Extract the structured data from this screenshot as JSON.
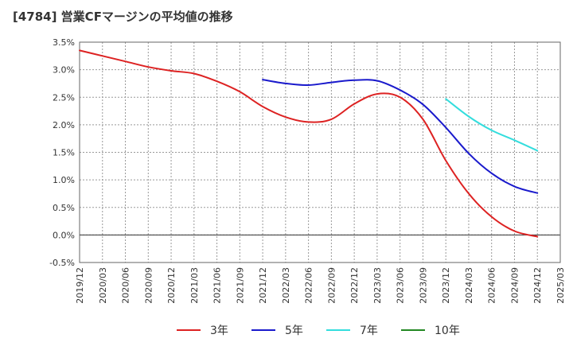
{
  "chart_data": {
    "type": "line",
    "title": "[4784]  営業CFマージンの平均値の推移",
    "xlabel": "",
    "ylabel": "",
    "x_ticks": [
      "2019/12",
      "2020/03",
      "2020/06",
      "2020/09",
      "2020/12",
      "2021/03",
      "2021/06",
      "2021/09",
      "2021/12",
      "2022/03",
      "2022/06",
      "2022/09",
      "2022/12",
      "2023/03",
      "2023/06",
      "2023/09",
      "2023/12",
      "2024/03",
      "2024/06",
      "2024/09",
      "2024/12",
      "2025/03"
    ],
    "y_ticks": [
      "-0.5%",
      "0.0%",
      "0.5%",
      "1.0%",
      "1.5%",
      "2.0%",
      "2.5%",
      "3.0%",
      "3.5%"
    ],
    "ylim": [
      -0.5,
      3.5
    ],
    "grid": true,
    "legend_position": "bottom",
    "series": [
      {
        "name": "3年",
        "color": "#dd2222",
        "points": [
          [
            "2019/12",
            3.35
          ],
          [
            "2020/03",
            3.25
          ],
          [
            "2020/06",
            3.15
          ],
          [
            "2020/09",
            3.05
          ],
          [
            "2020/12",
            2.98
          ],
          [
            "2021/03",
            2.93
          ],
          [
            "2021/06",
            2.79
          ],
          [
            "2021/09",
            2.6
          ],
          [
            "2021/12",
            2.33
          ],
          [
            "2022/03",
            2.14
          ],
          [
            "2022/06",
            2.05
          ],
          [
            "2022/09",
            2.1
          ],
          [
            "2022/12",
            2.38
          ],
          [
            "2023/03",
            2.56
          ],
          [
            "2023/06",
            2.5
          ],
          [
            "2023/09",
            2.1
          ],
          [
            "2023/12",
            1.35
          ],
          [
            "2024/03",
            0.75
          ],
          [
            "2024/06",
            0.33
          ],
          [
            "2024/09",
            0.07
          ],
          [
            "2024/12",
            -0.03
          ]
        ]
      },
      {
        "name": "5年",
        "color": "#1a1acc",
        "points": [
          [
            "2021/12",
            2.82
          ],
          [
            "2022/03",
            2.75
          ],
          [
            "2022/06",
            2.72
          ],
          [
            "2022/09",
            2.77
          ],
          [
            "2022/12",
            2.81
          ],
          [
            "2023/03",
            2.8
          ],
          [
            "2023/06",
            2.63
          ],
          [
            "2023/09",
            2.37
          ],
          [
            "2023/12",
            1.95
          ],
          [
            "2024/03",
            1.48
          ],
          [
            "2024/06",
            1.12
          ],
          [
            "2024/09",
            0.88
          ],
          [
            "2024/12",
            0.76
          ]
        ]
      },
      {
        "name": "7年",
        "color": "#33dddd",
        "points": [
          [
            "2023/12",
            2.47
          ],
          [
            "2024/03",
            2.15
          ],
          [
            "2024/06",
            1.9
          ],
          [
            "2024/09",
            1.72
          ],
          [
            "2024/12",
            1.53
          ]
        ]
      },
      {
        "name": "10年",
        "color": "#228822",
        "points": []
      }
    ]
  }
}
